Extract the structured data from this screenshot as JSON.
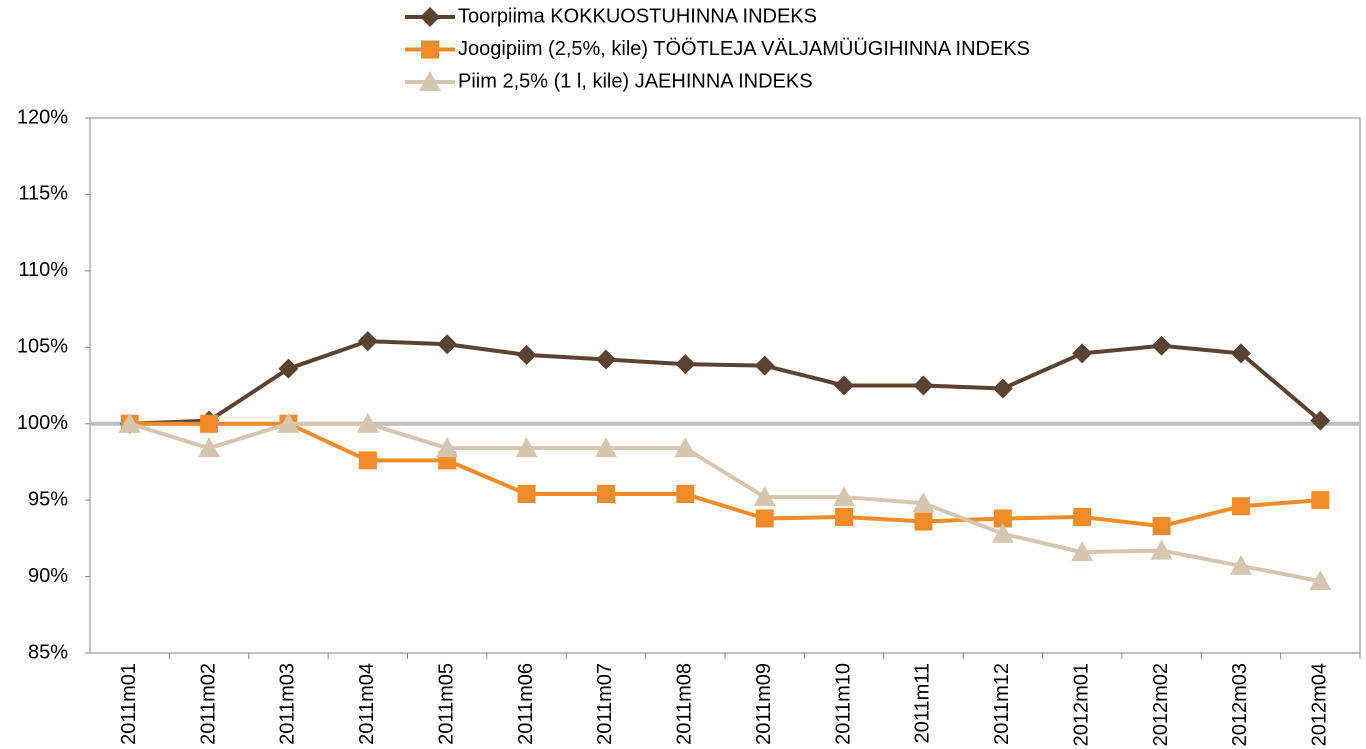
{
  "chart_data": {
    "type": "line",
    "categories": [
      "2011m01",
      "2011m02",
      "2011m03",
      "2011m04",
      "2011m05",
      "2011m06",
      "2011m07",
      "2011m08",
      "2011m09",
      "2011m10",
      "2011m11",
      "2011m12",
      "2012m01",
      "2012m02",
      "2012m03",
      "2012m04"
    ],
    "series": [
      {
        "name": "Toorpiima KOKKUOSTUHINNA INDEKS",
        "color": "#5b4332",
        "marker": "diamond",
        "values": [
          100,
          100.2,
          103.6,
          105.4,
          105.2,
          104.5,
          104.2,
          103.9,
          103.8,
          102.5,
          102.5,
          102.3,
          104.6,
          105.1,
          104.6,
          100.2
        ]
      },
      {
        "name": "Joogipiim (2,5%, kile) TÖÖTLEJA VÄLJAMÜÜGIHINNA INDEKS",
        "color": "#f28c28",
        "marker": "square",
        "values": [
          100,
          100,
          100,
          97.6,
          97.6,
          95.4,
          95.4,
          95.4,
          93.8,
          93.9,
          93.6,
          93.8,
          93.9,
          93.3,
          94.6,
          95.0
        ]
      },
      {
        "name": "Piim 2,5% (1 l, kile) JAEHINNA INDEKS",
        "color": "#d5c6b0",
        "marker": "triangle",
        "values": [
          100,
          98.4,
          100,
          100,
          98.4,
          98.4,
          98.4,
          98.4,
          95.2,
          95.2,
          94.8,
          92.8,
          91.6,
          91.7,
          90.7,
          89.7
        ]
      }
    ],
    "ylim": [
      85,
      120
    ],
    "yticks": [
      {
        "value": 85,
        "label": "85%"
      },
      {
        "value": 90,
        "label": "90%"
      },
      {
        "value": 95,
        "label": "95%"
      },
      {
        "value": 100,
        "label": "100%"
      },
      {
        "value": 105,
        "label": "105%"
      },
      {
        "value": 110,
        "label": "110%"
      },
      {
        "value": 115,
        "label": "115%"
      },
      {
        "value": 120,
        "label": "120%"
      }
    ],
    "reference_line": {
      "value": 100,
      "color": "#bfbfbf"
    },
    "legend": "top"
  }
}
